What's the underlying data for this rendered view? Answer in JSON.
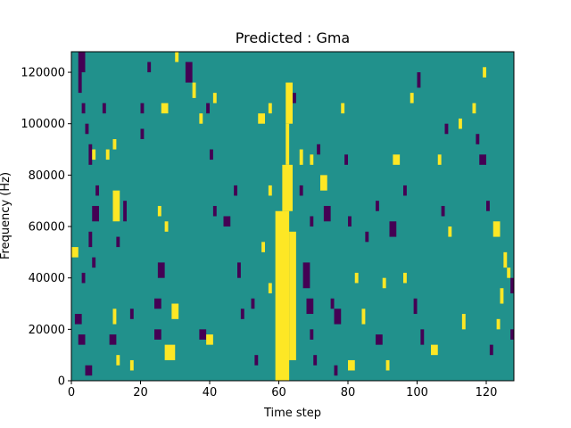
{
  "chart_data": {
    "type": "heatmap",
    "title": "Predicted : Gma",
    "xlabel": "Time step",
    "ylabel": "Frequency (Hz)",
    "xlim": [
      0,
      128
    ],
    "ylim": [
      0,
      128000
    ],
    "xticks": [
      0,
      20,
      40,
      60,
      80,
      100,
      120
    ],
    "xtick_labels": [
      "0",
      "20",
      "40",
      "60",
      "80",
      "100",
      "120"
    ],
    "yticks": [
      0,
      20000,
      40000,
      60000,
      80000,
      100000,
      120000
    ],
    "ytick_labels": [
      "0",
      "20000",
      "40000",
      "60000",
      "80000",
      "100000",
      "120000"
    ],
    "grid": false,
    "colormap": "viridis",
    "value_levels": [
      -1,
      0,
      1
    ],
    "level_colors": {
      "-1": "#440154",
      "0": "#21918c",
      "1": "#fde725"
    },
    "background_value": 0,
    "frequency_bins": 128,
    "time_steps": 128,
    "cells": [
      {
        "t": [
          2,
          4
        ],
        "f": [
          120000,
          128000
        ],
        "v": -1
      },
      {
        "t": [
          2,
          3
        ],
        "f": [
          112000,
          120000
        ],
        "v": -1
      },
      {
        "t": [
          3,
          4
        ],
        "f": [
          104000,
          108000
        ],
        "v": -1
      },
      {
        "t": [
          4,
          5
        ],
        "f": [
          96000,
          100000
        ],
        "v": -1
      },
      {
        "t": [
          5,
          6
        ],
        "f": [
          84000,
          92000
        ],
        "v": -1
      },
      {
        "t": [
          6,
          7
        ],
        "f": [
          86000,
          90000
        ],
        "v": 1
      },
      {
        "t": [
          7,
          8
        ],
        "f": [
          72000,
          76000
        ],
        "v": -1
      },
      {
        "t": [
          6,
          8
        ],
        "f": [
          62000,
          68000
        ],
        "v": -1
      },
      {
        "t": [
          5,
          6
        ],
        "f": [
          52000,
          58000
        ],
        "v": -1
      },
      {
        "t": [
          6,
          7
        ],
        "f": [
          44000,
          48000
        ],
        "v": -1
      },
      {
        "t": [
          0,
          2
        ],
        "f": [
          48000,
          52000
        ],
        "v": 1
      },
      {
        "t": [
          3,
          4
        ],
        "f": [
          38000,
          42000
        ],
        "v": -1
      },
      {
        "t": [
          1,
          3
        ],
        "f": [
          22000,
          26000
        ],
        "v": -1
      },
      {
        "t": [
          2,
          4
        ],
        "f": [
          14000,
          18000
        ],
        "v": -1
      },
      {
        "t": [
          4,
          6
        ],
        "f": [
          2000,
          6000
        ],
        "v": -1
      },
      {
        "t": [
          9,
          10
        ],
        "f": [
          104000,
          108000
        ],
        "v": -1
      },
      {
        "t": [
          10,
          11
        ],
        "f": [
          86000,
          90000
        ],
        "v": 1
      },
      {
        "t": [
          12,
          13
        ],
        "f": [
          90000,
          94000
        ],
        "v": 1
      },
      {
        "t": [
          12,
          14
        ],
        "f": [
          62000,
          74000
        ],
        "v": 1
      },
      {
        "t": [
          13,
          14
        ],
        "f": [
          52000,
          56000
        ],
        "v": -1
      },
      {
        "t": [
          12,
          13
        ],
        "f": [
          22000,
          28000
        ],
        "v": 1
      },
      {
        "t": [
          11,
          13
        ],
        "f": [
          14000,
          18000
        ],
        "v": -1
      },
      {
        "t": [
          13,
          14
        ],
        "f": [
          6000,
          10000
        ],
        "v": 1
      },
      {
        "t": [
          15,
          16
        ],
        "f": [
          62000,
          70000
        ],
        "v": -1
      },
      {
        "t": [
          17,
          18
        ],
        "f": [
          24000,
          28000
        ],
        "v": -1
      },
      {
        "t": [
          17,
          18
        ],
        "f": [
          4000,
          8000
        ],
        "v": 1
      },
      {
        "t": [
          20,
          21
        ],
        "f": [
          104000,
          108000
        ],
        "v": -1
      },
      {
        "t": [
          20,
          21
        ],
        "f": [
          94000,
          98000
        ],
        "v": -1
      },
      {
        "t": [
          22,
          23
        ],
        "f": [
          120000,
          124000
        ],
        "v": -1
      },
      {
        "t": [
          26,
          28
        ],
        "f": [
          104000,
          108000
        ],
        "v": 1
      },
      {
        "t": [
          25,
          26
        ],
        "f": [
          64000,
          68000
        ],
        "v": 1
      },
      {
        "t": [
          27,
          28
        ],
        "f": [
          58000,
          62000
        ],
        "v": 1
      },
      {
        "t": [
          25,
          27
        ],
        "f": [
          40000,
          46000
        ],
        "v": -1
      },
      {
        "t": [
          24,
          26
        ],
        "f": [
          28000,
          32000
        ],
        "v": -1
      },
      {
        "t": [
          24,
          26
        ],
        "f": [
          16000,
          20000
        ],
        "v": -1
      },
      {
        "t": [
          27,
          30
        ],
        "f": [
          8000,
          14000
        ],
        "v": 1
      },
      {
        "t": [
          29,
          31
        ],
        "f": [
          24000,
          30000
        ],
        "v": 1
      },
      {
        "t": [
          30,
          31
        ],
        "f": [
          124000,
          128000
        ],
        "v": 1
      },
      {
        "t": [
          33,
          35
        ],
        "f": [
          116000,
          124000
        ],
        "v": -1
      },
      {
        "t": [
          35,
          36
        ],
        "f": [
          110000,
          116000
        ],
        "v": 1
      },
      {
        "t": [
          37,
          38
        ],
        "f": [
          100000,
          104000
        ],
        "v": 1
      },
      {
        "t": [
          39,
          40
        ],
        "f": [
          104000,
          108000
        ],
        "v": -1
      },
      {
        "t": [
          41,
          42
        ],
        "f": [
          108000,
          112000
        ],
        "v": 1
      },
      {
        "t": [
          40,
          41
        ],
        "f": [
          86000,
          90000
        ],
        "v": -1
      },
      {
        "t": [
          41,
          42
        ],
        "f": [
          64000,
          68000
        ],
        "v": -1
      },
      {
        "t": [
          37,
          39
        ],
        "f": [
          16000,
          20000
        ],
        "v": -1
      },
      {
        "t": [
          39,
          41
        ],
        "f": [
          14000,
          18000
        ],
        "v": 1
      },
      {
        "t": [
          44,
          46
        ],
        "f": [
          60000,
          64000
        ],
        "v": -1
      },
      {
        "t": [
          47,
          48
        ],
        "f": [
          72000,
          76000
        ],
        "v": -1
      },
      {
        "t": [
          48,
          49
        ],
        "f": [
          40000,
          46000
        ],
        "v": -1
      },
      {
        "t": [
          49,
          50
        ],
        "f": [
          24000,
          28000
        ],
        "v": -1
      },
      {
        "t": [
          52,
          53
        ],
        "f": [
          28000,
          32000
        ],
        "v": -1
      },
      {
        "t": [
          53,
          54
        ],
        "f": [
          6000,
          10000
        ],
        "v": -1
      },
      {
        "t": [
          54,
          56
        ],
        "f": [
          100000,
          104000
        ],
        "v": 1
      },
      {
        "t": [
          57,
          58
        ],
        "f": [
          104000,
          108000
        ],
        "v": 1
      },
      {
        "t": [
          57,
          58
        ],
        "f": [
          72000,
          76000
        ],
        "v": 1
      },
      {
        "t": [
          57,
          58
        ],
        "f": [
          34000,
          38000
        ],
        "v": 1
      },
      {
        "t": [
          55,
          56
        ],
        "f": [
          50000,
          54000
        ],
        "v": 1
      },
      {
        "t": [
          59,
          63
        ],
        "f": [
          0,
          66000
        ],
        "v": 1
      },
      {
        "t": [
          61,
          64
        ],
        "f": [
          66000,
          84000
        ],
        "v": 1
      },
      {
        "t": [
          62,
          64
        ],
        "f": [
          100000,
          116000
        ],
        "v": 1
      },
      {
        "t": [
          62,
          63
        ],
        "f": [
          84000,
          100000
        ],
        "v": 1
      },
      {
        "t": [
          63,
          65
        ],
        "f": [
          8000,
          58000
        ],
        "v": 1
      },
      {
        "t": [
          64,
          65
        ],
        "f": [
          108000,
          112000
        ],
        "v": -1
      },
      {
        "t": [
          66,
          67
        ],
        "f": [
          84000,
          90000
        ],
        "v": 1
      },
      {
        "t": [
          66,
          67
        ],
        "f": [
          72000,
          76000
        ],
        "v": -1
      },
      {
        "t": [
          67,
          69
        ],
        "f": [
          36000,
          46000
        ],
        "v": -1
      },
      {
        "t": [
          68,
          70
        ],
        "f": [
          26000,
          32000
        ],
        "v": -1
      },
      {
        "t": [
          69,
          70
        ],
        "f": [
          60000,
          64000
        ],
        "v": -1
      },
      {
        "t": [
          69,
          70
        ],
        "f": [
          84000,
          88000
        ],
        "v": 1
      },
      {
        "t": [
          69,
          70
        ],
        "f": [
          16000,
          20000
        ],
        "v": -1
      },
      {
        "t": [
          70,
          71
        ],
        "f": [
          6000,
          10000
        ],
        "v": -1
      },
      {
        "t": [
          71,
          72
        ],
        "f": [
          88000,
          92000
        ],
        "v": -1
      },
      {
        "t": [
          72,
          74
        ],
        "f": [
          74000,
          80000
        ],
        "v": 1
      },
      {
        "t": [
          73,
          75
        ],
        "f": [
          62000,
          68000
        ],
        "v": -1
      },
      {
        "t": [
          75,
          76
        ],
        "f": [
          28000,
          32000
        ],
        "v": -1
      },
      {
        "t": [
          76,
          77
        ],
        "f": [
          2000,
          6000
        ],
        "v": -1
      },
      {
        "t": [
          76,
          78
        ],
        "f": [
          22000,
          28000
        ],
        "v": -1
      },
      {
        "t": [
          78,
          79
        ],
        "f": [
          104000,
          108000
        ],
        "v": 1
      },
      {
        "t": [
          79,
          80
        ],
        "f": [
          84000,
          88000
        ],
        "v": -1
      },
      {
        "t": [
          80,
          81
        ],
        "f": [
          60000,
          64000
        ],
        "v": -1
      },
      {
        "t": [
          80,
          82
        ],
        "f": [
          4000,
          8000
        ],
        "v": 1
      },
      {
        "t": [
          82,
          83
        ],
        "f": [
          38000,
          42000
        ],
        "v": 1
      },
      {
        "t": [
          84,
          85
        ],
        "f": [
          22000,
          28000
        ],
        "v": 1
      },
      {
        "t": [
          85,
          86
        ],
        "f": [
          54000,
          58000
        ],
        "v": -1
      },
      {
        "t": [
          88,
          89
        ],
        "f": [
          66000,
          70000
        ],
        "v": -1
      },
      {
        "t": [
          88,
          90
        ],
        "f": [
          14000,
          18000
        ],
        "v": -1
      },
      {
        "t": [
          90,
          91
        ],
        "f": [
          36000,
          40000
        ],
        "v": 1
      },
      {
        "t": [
          91,
          92
        ],
        "f": [
          4000,
          8000
        ],
        "v": 1
      },
      {
        "t": [
          92,
          94
        ],
        "f": [
          56000,
          62000
        ],
        "v": -1
      },
      {
        "t": [
          93,
          95
        ],
        "f": [
          84000,
          88000
        ],
        "v": 1
      },
      {
        "t": [
          96,
          97
        ],
        "f": [
          38000,
          42000
        ],
        "v": 1
      },
      {
        "t": [
          96,
          97
        ],
        "f": [
          72000,
          76000
        ],
        "v": -1
      },
      {
        "t": [
          98,
          99
        ],
        "f": [
          108000,
          112000
        ],
        "v": 1
      },
      {
        "t": [
          99,
          100
        ],
        "f": [
          26000,
          32000
        ],
        "v": -1
      },
      {
        "t": [
          100,
          101
        ],
        "f": [
          114000,
          120000
        ],
        "v": -1
      },
      {
        "t": [
          101,
          102
        ],
        "f": [
          14000,
          20000
        ],
        "v": -1
      },
      {
        "t": [
          104,
          106
        ],
        "f": [
          10000,
          14000
        ],
        "v": 1
      },
      {
        "t": [
          106,
          107
        ],
        "f": [
          84000,
          88000
        ],
        "v": 1
      },
      {
        "t": [
          107,
          108
        ],
        "f": [
          64000,
          68000
        ],
        "v": -1
      },
      {
        "t": [
          108,
          109
        ],
        "f": [
          96000,
          100000
        ],
        "v": -1
      },
      {
        "t": [
          109,
          110
        ],
        "f": [
          56000,
          60000
        ],
        "v": 1
      },
      {
        "t": [
          112,
          113
        ],
        "f": [
          98000,
          102000
        ],
        "v": 1
      },
      {
        "t": [
          113,
          114
        ],
        "f": [
          20000,
          26000
        ],
        "v": 1
      },
      {
        "t": [
          116,
          117
        ],
        "f": [
          104000,
          108000
        ],
        "v": 1
      },
      {
        "t": [
          117,
          118
        ],
        "f": [
          92000,
          96000
        ],
        "v": -1
      },
      {
        "t": [
          118,
          120
        ],
        "f": [
          84000,
          88000
        ],
        "v": -1
      },
      {
        "t": [
          119,
          120
        ],
        "f": [
          118000,
          122000
        ],
        "v": 1
      },
      {
        "t": [
          120,
          121
        ],
        "f": [
          66000,
          70000
        ],
        "v": -1
      },
      {
        "t": [
          122,
          124
        ],
        "f": [
          56000,
          62000
        ],
        "v": 1
      },
      {
        "t": [
          121,
          122
        ],
        "f": [
          10000,
          14000
        ],
        "v": -1
      },
      {
        "t": [
          123,
          124
        ],
        "f": [
          20000,
          24000
        ],
        "v": 1
      },
      {
        "t": [
          124,
          125
        ],
        "f": [
          30000,
          36000
        ],
        "v": 1
      },
      {
        "t": [
          125,
          126
        ],
        "f": [
          44000,
          50000
        ],
        "v": 1
      },
      {
        "t": [
          126,
          127
        ],
        "f": [
          40000,
          44000
        ],
        "v": 1
      },
      {
        "t": [
          127,
          128
        ],
        "f": [
          34000,
          40000
        ],
        "v": -1
      },
      {
        "t": [
          127,
          128
        ],
        "f": [
          16000,
          20000
        ],
        "v": -1
      }
    ]
  }
}
